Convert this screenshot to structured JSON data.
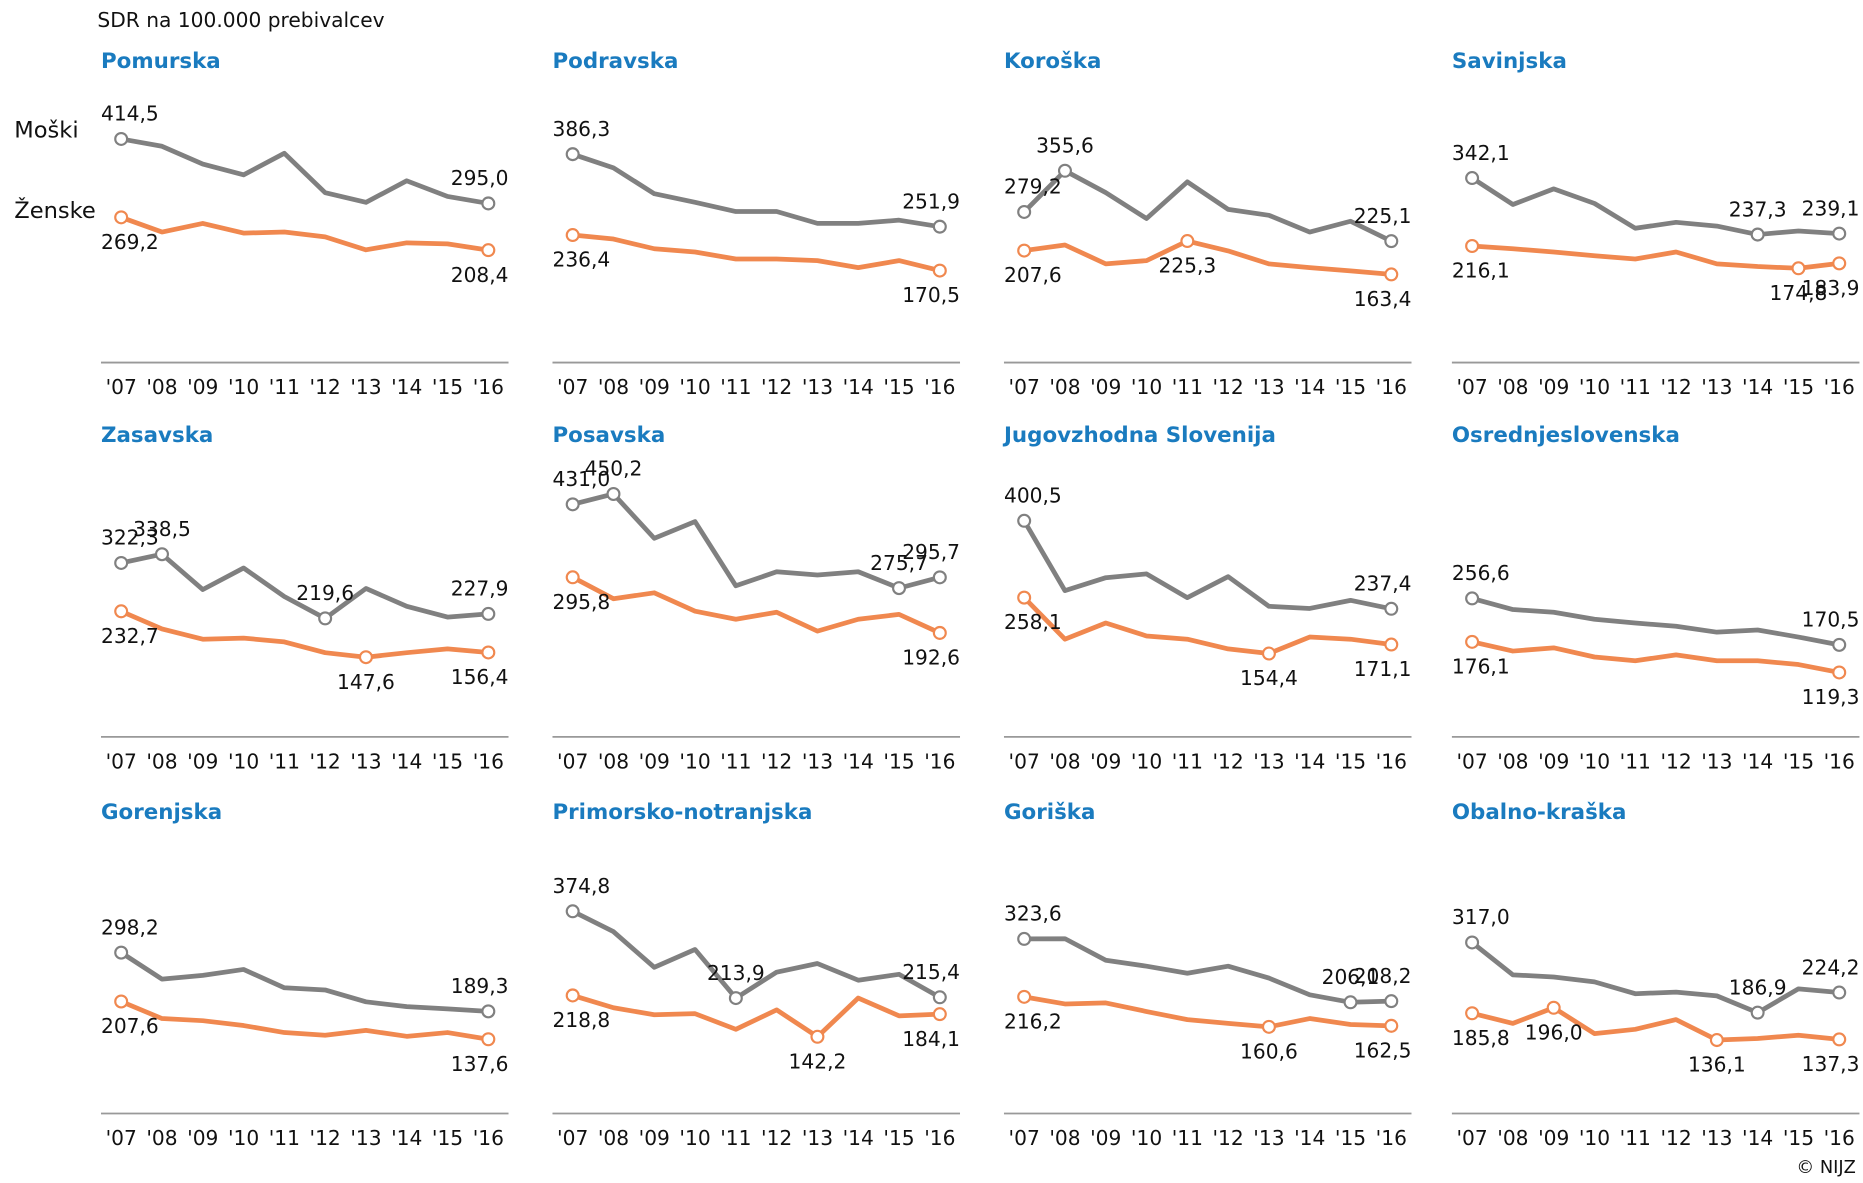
{
  "y_axis_label": "SDR na 100.000 prebivalcev",
  "source": "© NIJZ",
  "legend": [
    {
      "name": "Moški",
      "color": "#808080"
    },
    {
      "name": "Ženske",
      "color": "#f0884f"
    }
  ],
  "chart_data": [
    {
      "type": "line",
      "title": "Pomurska",
      "categories": [
        "'07",
        "'08",
        "'09",
        "'10",
        "'11",
        "'12",
        "'13",
        "'14",
        "'15",
        "'16"
      ],
      "ylim": [
        0,
        500
      ],
      "series": [
        {
          "values": [
            414.5,
            401,
            368,
            348,
            388,
            315,
            297,
            337,
            308,
            295.0
          ],
          "value_labels": [
            "414,5",
            null,
            null,
            null,
            null,
            null,
            null,
            null,
            null,
            "295,0"
          ]
        },
        {
          "values": [
            269.2,
            242,
            258,
            240,
            242,
            233,
            209,
            222,
            220,
            208.4
          ],
          "value_labels": [
            "269,2",
            null,
            null,
            null,
            null,
            null,
            null,
            null,
            null,
            "208,4"
          ]
        }
      ]
    },
    {
      "type": "line",
      "title": "Podravska",
      "categories": [
        "'07",
        "'08",
        "'09",
        "'10",
        "'11",
        "'12",
        "'13",
        "'14",
        "'15",
        "'16"
      ],
      "ylim": [
        0,
        500
      ],
      "series": [
        {
          "values": [
            386.3,
            361,
            313,
            297,
            280,
            280,
            258,
            258,
            264,
            251.9
          ],
          "value_labels": [
            "386,3",
            null,
            null,
            null,
            null,
            null,
            null,
            null,
            null,
            "251,9"
          ]
        },
        {
          "values": [
            236.4,
            229,
            211,
            205,
            192,
            192,
            189,
            176,
            189,
            170.5
          ],
          "value_labels": [
            "236,4",
            null,
            null,
            null,
            null,
            null,
            null,
            null,
            null,
            "170,5"
          ]
        }
      ]
    },
    {
      "type": "line",
      "title": "Koroška",
      "categories": [
        "'07",
        "'08",
        "'09",
        "'10",
        "'11",
        "'12",
        "'13",
        "'14",
        "'15",
        "'16"
      ],
      "ylim": [
        0,
        500
      ],
      "series": [
        {
          "values": [
            279.2,
            355.6,
            315,
            267,
            335,
            284,
            273,
            242,
            262,
            225.1
          ],
          "value_labels": [
            "279,2",
            "355,6",
            null,
            null,
            null,
            null,
            null,
            null,
            null,
            "225,1"
          ]
        },
        {
          "values": [
            207.6,
            218,
            183,
            189,
            225.3,
            207,
            183,
            176,
            170,
            163.4
          ],
          "value_labels": [
            "207,6",
            null,
            null,
            null,
            "225,3",
            null,
            null,
            null,
            null,
            "163,4"
          ]
        }
      ]
    },
    {
      "type": "line",
      "title": "Savinjska",
      "categories": [
        "'07",
        "'08",
        "'09",
        "'10",
        "'11",
        "'12",
        "'13",
        "'14",
        "'15",
        "'16"
      ],
      "ylim": [
        0,
        500
      ],
      "series": [
        {
          "values": [
            342.1,
            293,
            322,
            295,
            249,
            260,
            253,
            237.3,
            244,
            239.1
          ],
          "value_labels": [
            "342,1",
            null,
            null,
            null,
            null,
            null,
            null,
            "237,3",
            null,
            "239,1"
          ]
        },
        {
          "values": [
            216.1,
            211,
            205,
            198,
            192,
            205,
            183,
            178,
            174.8,
            183.9
          ],
          "value_labels": [
            "216,1",
            null,
            null,
            null,
            null,
            null,
            null,
            null,
            "174,8",
            "183,9"
          ]
        }
      ]
    },
    {
      "type": "line",
      "title": "Zasavska",
      "categories": [
        "'07",
        "'08",
        "'09",
        "'10",
        "'11",
        "'12",
        "'13",
        "'14",
        "'15",
        "'16"
      ],
      "ylim": [
        0,
        500
      ],
      "series": [
        {
          "values": [
            322.3,
            338.5,
            273,
            313,
            260,
            219.6,
            275,
            242,
            222,
            227.9
          ],
          "value_labels": [
            "322,3",
            "338,5",
            null,
            null,
            null,
            "219,6",
            null,
            null,
            null,
            "227,9"
          ]
        },
        {
          "values": [
            232.7,
            200,
            181,
            183,
            176,
            156,
            147.6,
            156,
            163,
            156.4
          ],
          "value_labels": [
            "232,7",
            null,
            null,
            null,
            null,
            null,
            "147,6",
            null,
            null,
            "156,4"
          ]
        }
      ]
    },
    {
      "type": "line",
      "title": "Posavska",
      "categories": [
        "'07",
        "'08",
        "'09",
        "'10",
        "'11",
        "'12",
        "'13",
        "'14",
        "'15",
        "'16"
      ],
      "ylim": [
        0,
        500
      ],
      "series": [
        {
          "values": [
            431.0,
            450.2,
            368,
            399,
            280,
            306,
            300,
            306,
            275.7,
            295.7
          ],
          "value_labels": [
            "431,0",
            "450,2",
            null,
            null,
            null,
            null,
            null,
            null,
            "275,7",
            "295,7"
          ]
        },
        {
          "values": [
            295.8,
            256,
            267,
            233,
            218,
            231,
            196,
            218,
            227,
            192.6
          ],
          "value_labels": [
            "295,8",
            null,
            null,
            null,
            null,
            null,
            null,
            null,
            null,
            "192,6"
          ]
        }
      ]
    },
    {
      "type": "line",
      "title": "Jugovzhodna  Slovenija",
      "categories": [
        "'07",
        "'08",
        "'09",
        "'10",
        "'11",
        "'12",
        "'13",
        "'14",
        "'15",
        "'16"
      ],
      "ylim": [
        0,
        500
      ],
      "series": [
        {
          "values": [
            400.5,
            271,
            295,
            302,
            258,
            297,
            242,
            238,
            253,
            237.4
          ],
          "value_labels": [
            "400,5",
            null,
            null,
            null,
            null,
            null,
            null,
            null,
            null,
            "237,4"
          ]
        },
        {
          "values": [
            258.1,
            181,
            211,
            187,
            181,
            163,
            154.4,
            185,
            181,
            171.1
          ],
          "value_labels": [
            "258,1",
            null,
            null,
            null,
            null,
            null,
            "154,4",
            null,
            null,
            "171,1"
          ]
        }
      ]
    },
    {
      "type": "line",
      "title": "Osrednjeslovenska",
      "categories": [
        "'07",
        "'08",
        "'09",
        "'10",
        "'11",
        "'12",
        "'13",
        "'14",
        "'15",
        "'16"
      ],
      "ylim": [
        0,
        500
      ],
      "series": [
        {
          "values": [
            256.6,
            236,
            231,
            218,
            211,
            205,
            194,
            198,
            185,
            170.5
          ],
          "value_labels": [
            "256,6",
            null,
            null,
            null,
            null,
            null,
            null,
            null,
            null,
            "170,5"
          ]
        },
        {
          "values": [
            176.1,
            159,
            165,
            148,
            141,
            152,
            141,
            141,
            134,
            119.3
          ],
          "value_labels": [
            "176,1",
            null,
            null,
            null,
            null,
            null,
            null,
            null,
            null,
            "119,3"
          ]
        }
      ]
    },
    {
      "type": "line",
      "title": "Gorenjska",
      "categories": [
        "'07",
        "'08",
        "'09",
        "'10",
        "'11",
        "'12",
        "'13",
        "'14",
        "'15",
        "'16"
      ],
      "ylim": [
        0,
        500
      ],
      "series": [
        {
          "values": [
            298.2,
            249,
            256,
            267,
            233,
            229,
            207,
            198,
            194,
            189.3
          ],
          "value_labels": [
            "298,2",
            null,
            null,
            null,
            null,
            null,
            null,
            null,
            null,
            "189,3"
          ]
        },
        {
          "values": [
            207.6,
            176,
            172,
            163,
            150,
            145,
            154,
            143,
            150,
            137.6
          ],
          "value_labels": [
            "207,6",
            null,
            null,
            null,
            null,
            null,
            null,
            null,
            null,
            "137,6"
          ]
        }
      ]
    },
    {
      "type": "line",
      "title": "Primorsko-notranjska",
      "categories": [
        "'07",
        "'08",
        "'09",
        "'10",
        "'11",
        "'12",
        "'13",
        "'14",
        "'15",
        "'16"
      ],
      "ylim": [
        0,
        500
      ],
      "series": [
        {
          "values": [
            374.8,
            337,
            271,
            304,
            213.9,
            262,
            278,
            247,
            258,
            215.4
          ],
          "value_labels": [
            "374,8",
            null,
            null,
            null,
            "213,9",
            null,
            null,
            null,
            null,
            "215,4"
          ]
        },
        {
          "values": [
            218.8,
            196,
            183,
            185,
            156,
            192,
            142.2,
            214,
            181,
            184.1
          ],
          "value_labels": [
            "218,8",
            null,
            null,
            null,
            null,
            null,
            "142,2",
            null,
            null,
            "184,1"
          ]
        }
      ]
    },
    {
      "type": "line",
      "title": "Goriška",
      "categories": [
        "'07",
        "'08",
        "'09",
        "'10",
        "'11",
        "'12",
        "'13",
        "'14",
        "'15",
        "'16"
      ],
      "ylim": [
        0,
        500
      ],
      "series": [
        {
          "values": [
            323.6,
            324,
            284,
            273,
            260,
            273,
            251,
            220,
            206.1,
            208.2
          ],
          "value_labels": [
            "323,6",
            null,
            null,
            null,
            null,
            null,
            null,
            null,
            "206,1",
            "208,2"
          ]
        },
        {
          "values": [
            216.2,
            203,
            205,
            189,
            174,
            167,
            160.6,
            176,
            165,
            162.5
          ],
          "value_labels": [
            "216,2",
            null,
            null,
            null,
            null,
            null,
            "160,6",
            null,
            null,
            "162,5"
          ]
        }
      ]
    },
    {
      "type": "line",
      "title": "Obalno-kraška",
      "categories": [
        "'07",
        "'08",
        "'09",
        "'10",
        "'11",
        "'12",
        "'13",
        "'14",
        "'15",
        "'16"
      ],
      "ylim": [
        0,
        500
      ],
      "series": [
        {
          "values": [
            317.0,
            257,
            253,
            244,
            222,
            225,
            218,
            186.9,
            231,
            224.2
          ],
          "value_labels": [
            "317,0",
            null,
            null,
            null,
            null,
            null,
            null,
            "186,9",
            null,
            "224,2"
          ]
        },
        {
          "values": [
            185.8,
            167,
            196.0,
            148,
            156,
            174,
            136.1,
            139,
            145,
            137.3
          ],
          "value_labels": [
            "185,8",
            null,
            "196,0",
            null,
            null,
            null,
            "136,1",
            null,
            null,
            "137,3"
          ]
        }
      ]
    }
  ]
}
